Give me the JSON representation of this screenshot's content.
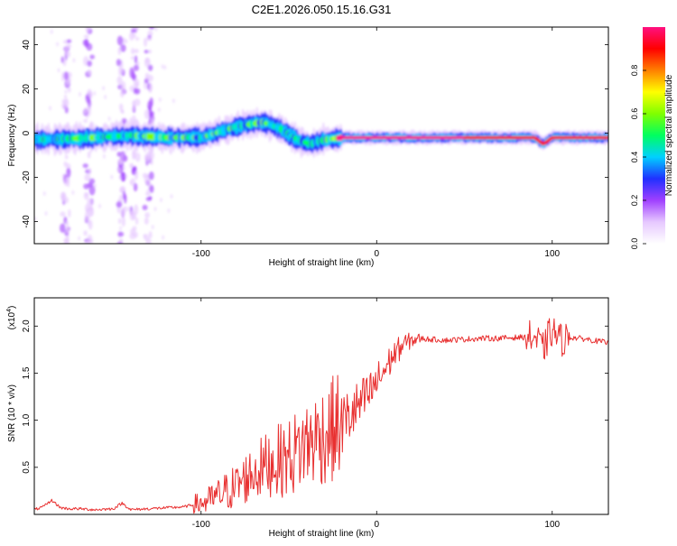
{
  "title": "C2E1.2026.050.15.16.G31",
  "colorbar": {
    "label": "Normalized spectral amplitude",
    "ticks": [
      "0.0",
      "0.2",
      "0.4",
      "0.6",
      "0.8"
    ],
    "tick_values": [
      0.0,
      0.2,
      0.4,
      0.6,
      0.8
    ],
    "range": [
      0,
      1
    ],
    "colors": [
      "#ffffff",
      "#e6c8ff",
      "#a040ff",
      "#2030ff",
      "#00d0ff",
      "#00ff60",
      "#80ff00",
      "#ffff00",
      "#ff8000",
      "#ff0000",
      "#ff1080"
    ]
  },
  "chart_data": [
    {
      "type": "heatmap",
      "title": "C2E1.2026.050.15.16.G31",
      "xlabel": "Height of straight line (km)",
      "ylabel": "Frequency (Hz)",
      "xlim": [
        -195,
        132
      ],
      "ylim": [
        -50,
        48
      ],
      "xticks": [
        -100,
        0,
        100
      ],
      "xtick_labels": [
        "-100",
        "0",
        "100"
      ],
      "yticks": [
        40,
        20,
        0,
        -20,
        -40
      ],
      "ytick_labels": [
        "40",
        "20",
        "0",
        "-20",
        "-40"
      ],
      "ridge": {
        "x": [
          -195,
          -160,
          -140,
          -120,
          -100,
          -80,
          -65,
          -55,
          -45,
          -38,
          -30,
          -20,
          0,
          50,
          90,
          95,
          100,
          132
        ],
        "freq": [
          -3,
          -2,
          -1,
          -2,
          -2,
          3,
          5,
          2,
          -3,
          -5,
          -3,
          -2,
          -2,
          -2,
          -2,
          -5,
          -2,
          -2
        ],
        "amplitude": [
          0.45,
          0.5,
          0.5,
          0.55,
          0.5,
          0.5,
          0.5,
          0.5,
          0.5,
          0.45,
          0.45,
          0.95,
          0.95,
          0.95,
          0.9,
          0.85,
          0.95,
          0.9
        ]
      },
      "noise_bands_x": [
        -177,
        -164,
        -145,
        -138,
        -130
      ]
    },
    {
      "type": "line",
      "xlabel": "Height of straight line (km)",
      "ylabel": "SNR (10 * v/v)",
      "y_multiplier": "(x10",
      "y_multiplier_exp": "4",
      "y_multiplier_close": ")",
      "xlim": [
        -195,
        132
      ],
      "ylim": [
        0,
        2.3
      ],
      "xticks": [
        -100,
        0,
        100
      ],
      "xtick_labels": [
        "-100",
        "0",
        "100"
      ],
      "yticks": [
        0.5,
        1.0,
        1.5,
        2.0
      ],
      "ytick_labels": [
        "0.5",
        "1.0",
        "1.5",
        "2.0"
      ],
      "series": [
        {
          "name": "SNR",
          "color": "#e83030",
          "x": [
            -195,
            -190,
            -185,
            -180,
            -175,
            -170,
            -160,
            -150,
            -145,
            -140,
            -130,
            -120,
            -110,
            -100,
            -95,
            -90,
            -80,
            -70,
            -60,
            -50,
            -40,
            -30,
            -20,
            -15,
            -10,
            -5,
            0,
            5,
            10,
            15,
            20,
            25,
            30,
            40,
            50,
            60,
            70,
            80,
            90,
            95,
            98,
            100,
            105,
            110,
            120,
            132
          ],
          "y": [
            0.05,
            0.08,
            0.15,
            0.07,
            0.06,
            0.06,
            0.05,
            0.06,
            0.12,
            0.05,
            0.06,
            0.07,
            0.08,
            0.12,
            0.15,
            0.2,
            0.3,
            0.45,
            0.55,
            0.6,
            0.75,
            0.85,
            0.95,
            1.05,
            1.15,
            1.25,
            1.4,
            1.55,
            1.7,
            1.8,
            1.85,
            1.87,
            1.86,
            1.85,
            1.86,
            1.87,
            1.87,
            1.88,
            1.88,
            1.75,
            1.9,
            1.95,
            1.85,
            1.88,
            1.86,
            1.82
          ]
        }
      ]
    }
  ]
}
